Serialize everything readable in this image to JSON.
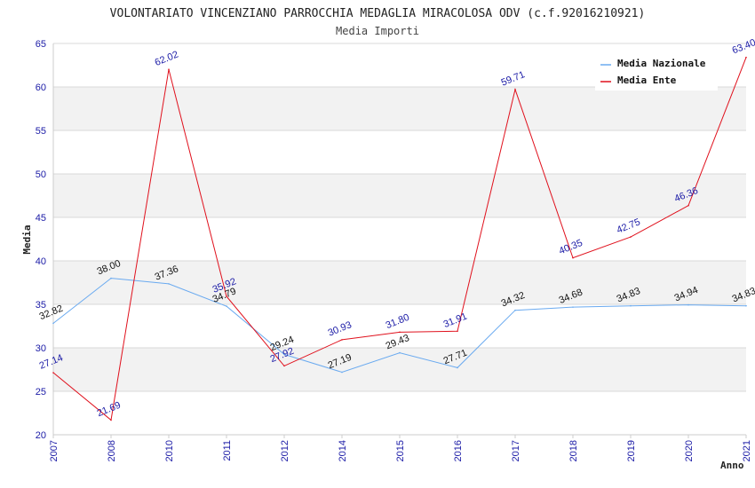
{
  "chart_data": {
    "type": "line",
    "title": "VOLONTARIATO VINCENZIANO PARROCCHIA MEDAGLIA MIRACOLOSA ODV (c.f.92016210921)",
    "subtitle": "Media Importi",
    "xlabel": "Anno",
    "ylabel": "Media",
    "categories": [
      "2007",
      "2008",
      "2010",
      "2011",
      "2012",
      "2014",
      "2015",
      "2016",
      "2017",
      "2018",
      "2019",
      "2020",
      "2021"
    ],
    "ylim": [
      20,
      65
    ],
    "yticks": [
      20,
      25,
      30,
      35,
      40,
      45,
      50,
      55,
      60,
      65
    ],
    "grid": true,
    "legend_position": "top-right",
    "series": [
      {
        "name": "Media Nazionale",
        "color": "#6aaaf0",
        "label_color": "#111111",
        "values": [
          32.82,
          38.0,
          37.36,
          34.79,
          29.24,
          27.19,
          29.43,
          27.71,
          34.32,
          34.68,
          34.83,
          34.94,
          34.83
        ],
        "labels": [
          "32.82",
          "38.00",
          "37.36",
          "34.79",
          "29.24",
          "27.19",
          "29.43",
          "27.71",
          "34.32",
          "34.68",
          "34.83",
          "34.94",
          "34.83"
        ]
      },
      {
        "name": "Media Ente",
        "color": "#e0101c",
        "label_color": "#1a1aa6",
        "values": [
          27.14,
          21.69,
          62.02,
          35.92,
          27.92,
          30.93,
          31.8,
          31.91,
          59.71,
          40.35,
          42.75,
          46.36,
          63.4
        ],
        "labels": [
          "27.14",
          "21.69",
          "62.02",
          "35.92",
          "27.92",
          "30.93",
          "31.80",
          "31.91",
          "59.71",
          "40.35",
          "42.75",
          "46.36",
          "63.40"
        ]
      }
    ]
  }
}
